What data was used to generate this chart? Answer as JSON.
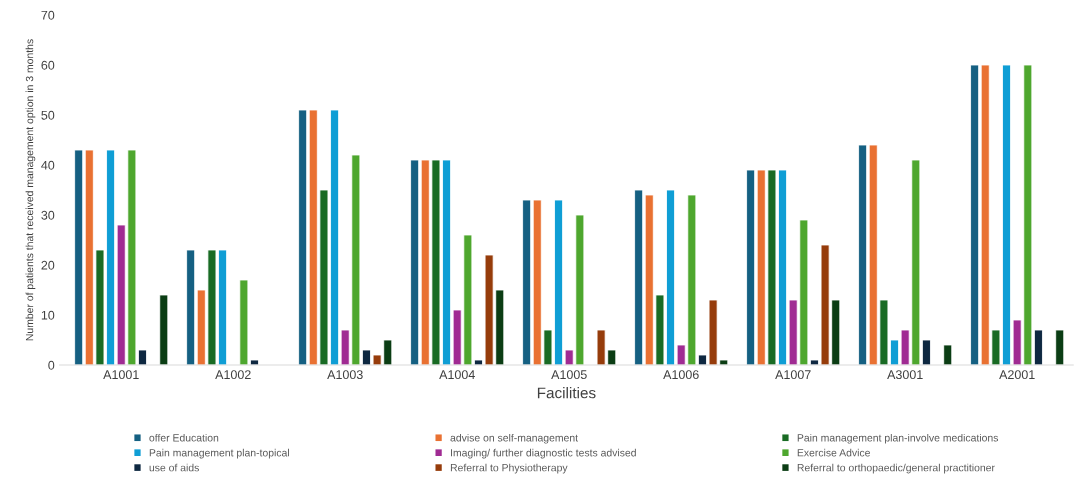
{
  "chart_data": {
    "type": "bar",
    "xlabel": "Facilities",
    "ylabel": "Number of patients that received management option in 3 months",
    "categories": [
      "A1001",
      "A1002",
      "A1003",
      "A1004",
      "A1005",
      "A1006",
      "A1007",
      "A3001",
      "A2001"
    ],
    "ylim": [
      0,
      70
    ],
    "yticks": [
      0,
      10,
      20,
      30,
      40,
      50,
      60,
      70
    ],
    "grid": false,
    "legend": "bottom",
    "series": [
      {
        "name": "offer Education",
        "color": "#156082",
        "values": [
          43,
          23,
          51,
          41,
          33,
          35,
          39,
          44,
          60
        ]
      },
      {
        "name": "advise on self-management",
        "color": "#e97132",
        "values": [
          43,
          15,
          51,
          41,
          33,
          34,
          39,
          44,
          60
        ]
      },
      {
        "name": "Pain management plan-involve medications",
        "color": "#196b24",
        "values": [
          23,
          23,
          35,
          41,
          7,
          14,
          39,
          13,
          7
        ]
      },
      {
        "name": "Pain management plan-topical",
        "color": "#0f9ed5",
        "values": [
          43,
          23,
          51,
          41,
          33,
          35,
          39,
          5,
          60
        ]
      },
      {
        "name": "Imaging/ further diagnostic tests advised",
        "color": "#a02b93",
        "values": [
          28,
          null,
          7,
          11,
          3,
          4,
          13,
          7,
          9
        ]
      },
      {
        "name": "Exercise Advice",
        "color": "#4ea72e",
        "values": [
          43,
          17,
          42,
          26,
          30,
          34,
          29,
          41,
          60
        ]
      },
      {
        "name": "use of aids",
        "color": "#0e2841",
        "values": [
          3,
          1,
          3,
          1,
          null,
          2,
          1,
          5,
          7
        ]
      },
      {
        "name": "Referral to Physiotherapy",
        "color": "#963c0b",
        "values": [
          null,
          null,
          2,
          22,
          7,
          13,
          24,
          null,
          null
        ]
      },
      {
        "name": "Referral to orthopaedic/general practitioner",
        "color": "#0b3d14",
        "values": [
          14,
          null,
          5,
          15,
          3,
          1,
          13,
          4,
          7
        ]
      }
    ]
  }
}
